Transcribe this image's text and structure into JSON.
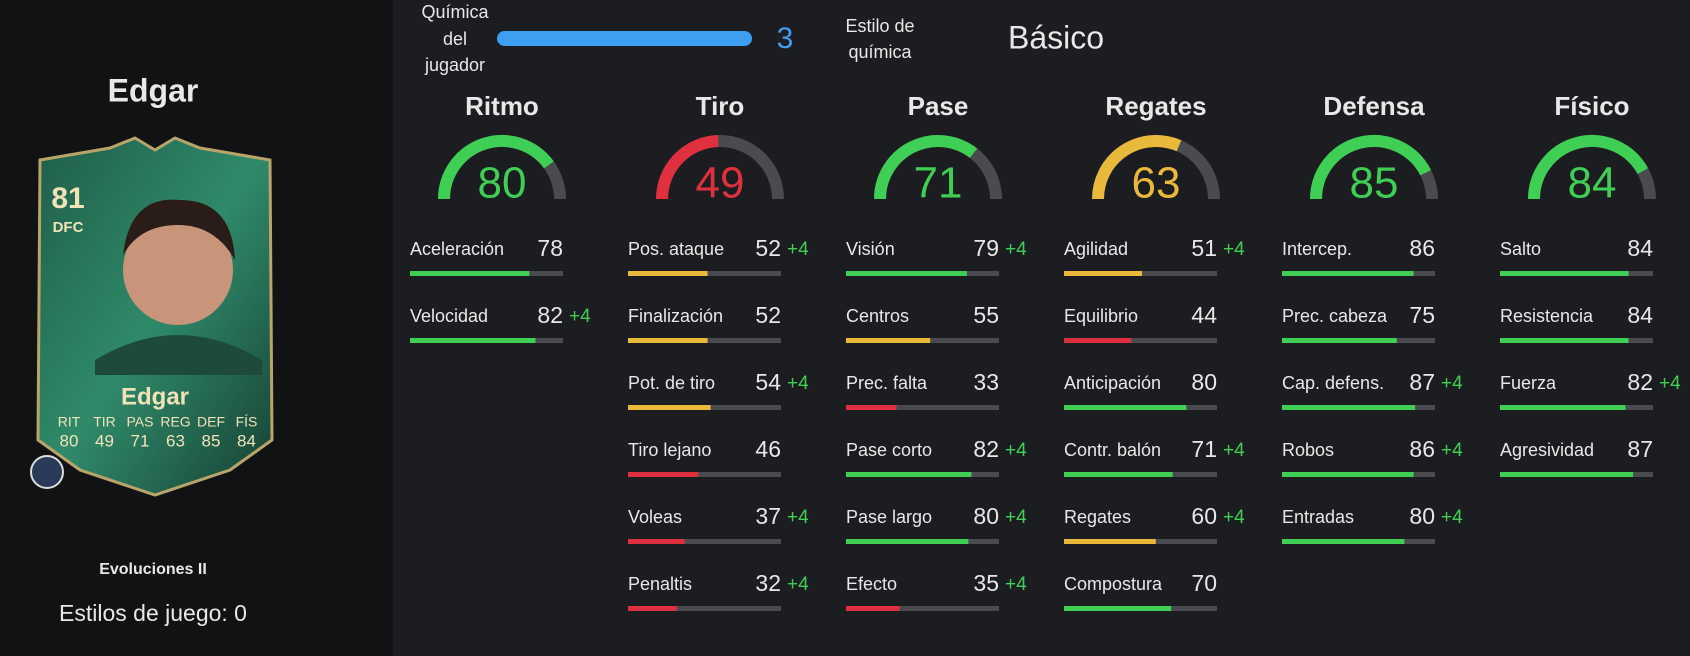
{
  "player": {
    "name": "Edgar",
    "card": {
      "rating": "81",
      "position": "DFC",
      "name": "Edgar",
      "stats": [
        {
          "label": "RIT",
          "value": "80"
        },
        {
          "label": "TIR",
          "value": "49"
        },
        {
          "label": "PAS",
          "value": "71"
        },
        {
          "label": "REG",
          "value": "63"
        },
        {
          "label": "DEF",
          "value": "85"
        },
        {
          "label": "FÍS",
          "value": "84"
        }
      ]
    },
    "evolution": "Evoluciones II",
    "playstyles": "Estilos de juego: 0"
  },
  "chemistry": {
    "label": [
      "Química",
      "del",
      "jugador"
    ],
    "value": "3",
    "style_label": [
      "Estilo de",
      "química"
    ],
    "style": "Básico"
  },
  "categories": [
    {
      "name": "Ritmo",
      "value": 80,
      "attributes": [
        {
          "name": "Aceleración",
          "value": 78
        },
        {
          "name": "Velocidad",
          "value": 82,
          "boost": "+4"
        }
      ]
    },
    {
      "name": "Tiro",
      "value": 49,
      "attributes": [
        {
          "name": "Pos. ataque",
          "value": 52,
          "boost": "+4"
        },
        {
          "name": "Finalización",
          "value": 52
        },
        {
          "name": "Pot. de tiro",
          "value": 54,
          "boost": "+4"
        },
        {
          "name": "Tiro lejano",
          "value": 46
        },
        {
          "name": "Voleas",
          "value": 37,
          "boost": "+4"
        },
        {
          "name": "Penaltis",
          "value": 32,
          "boost": "+4"
        }
      ]
    },
    {
      "name": "Pase",
      "value": 71,
      "attributes": [
        {
          "name": "Visión",
          "value": 79,
          "boost": "+4"
        },
        {
          "name": "Centros",
          "value": 55
        },
        {
          "name": "Prec. falta",
          "value": 33
        },
        {
          "name": "Pase corto",
          "value": 82,
          "boost": "+4"
        },
        {
          "name": "Pase largo",
          "value": 80,
          "boost": "+4"
        },
        {
          "name": "Efecto",
          "value": 35,
          "boost": "+4"
        }
      ]
    },
    {
      "name": "Regates",
      "value": 63,
      "attributes": [
        {
          "name": "Agilidad",
          "value": 51,
          "boost": "+4"
        },
        {
          "name": "Equilibrio",
          "value": 44
        },
        {
          "name": "Anticipación",
          "value": 80
        },
        {
          "name": "Contr. balón",
          "value": 71,
          "boost": "+4"
        },
        {
          "name": "Regates",
          "value": 60,
          "boost": "+4"
        },
        {
          "name": "Compostura",
          "value": 70
        }
      ]
    },
    {
      "name": "Defensa",
      "value": 85,
      "attributes": [
        {
          "name": "Intercep.",
          "value": 86
        },
        {
          "name": "Prec. cabeza",
          "value": 75
        },
        {
          "name": "Cap. defens.",
          "value": 87,
          "boost": "+4"
        },
        {
          "name": "Robos",
          "value": 86,
          "boost": "+4"
        },
        {
          "name": "Entradas",
          "value": 80,
          "boost": "+4"
        }
      ]
    },
    {
      "name": "Físico",
      "value": 84,
      "attributes": [
        {
          "name": "Salto",
          "value": 84
        },
        {
          "name": "Resistencia",
          "value": 84
        },
        {
          "name": "Fuerza",
          "value": 82,
          "boost": "+4"
        },
        {
          "name": "Agresividad",
          "value": 87
        }
      ]
    }
  ]
}
